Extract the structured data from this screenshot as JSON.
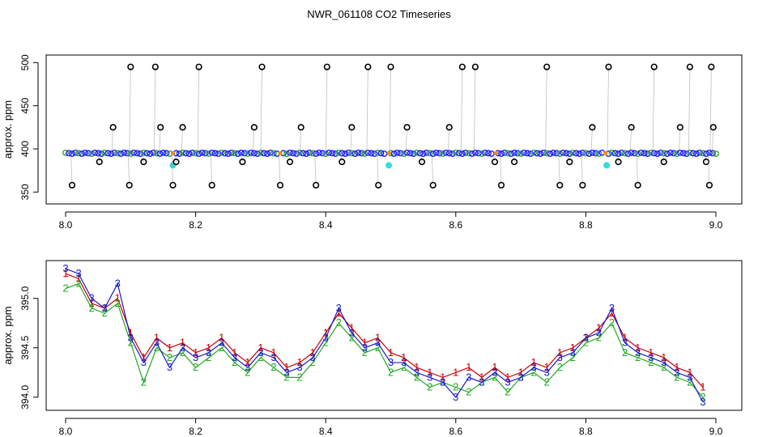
{
  "title": "NWR_061108  CO2 Timeseries",
  "chart_data": [
    {
      "type": "scatter",
      "ylabel": "approx. ppm",
      "xlim": [
        8.0,
        9.0
      ],
      "ylim": [
        340,
        505
      ],
      "x_ticks": [
        "8.0",
        "8.2",
        "8.4",
        "8.6",
        "8.8",
        "9.0"
      ],
      "y_ticks": [
        "350",
        "400",
        "450",
        "500"
      ],
      "colors": {
        "open_circle": "#000000",
        "baseline_blue": "#1a1aff",
        "baseline_green": "#22aa22",
        "cyan": "#33dddd",
        "stem": "#808080",
        "gap": "#ff8c00"
      },
      "baseline_ppm": 395,
      "gaps_x": [
        0.165,
        0.33,
        0.497,
        0.662,
        0.83
      ],
      "cyan_points": [
        {
          "x": 0.165,
          "y": 381
        },
        {
          "x": 0.497,
          "y": 381
        },
        {
          "x": 0.832,
          "y": 381
        }
      ],
      "series": [
        {
          "x": [
            0.01,
            0.052,
            0.073,
            0.098,
            0.1,
            0.12,
            0.138,
            0.146,
            0.165,
            0.17,
            0.18,
            0.205,
            0.225,
            0.272,
            0.29,
            0.302,
            0.33,
            0.345,
            0.362,
            0.385,
            0.402,
            0.425,
            0.44,
            0.465,
            0.481,
            0.5,
            0.525,
            0.548,
            0.565,
            0.59,
            0.61,
            0.63,
            0.66,
            0.67,
            0.69,
            0.74,
            0.76,
            0.775,
            0.795,
            0.81,
            0.835,
            0.85,
            0.87,
            0.88,
            0.905,
            0.92,
            0.945,
            0.96,
            0.985,
            0.99,
            0.993,
            0.996
          ],
          "y": [
            358,
            385,
            425,
            358,
            495,
            385,
            495,
            425,
            358,
            385,
            425,
            495,
            358,
            385,
            425,
            495,
            358,
            385,
            425,
            358,
            495,
            385,
            425,
            495,
            358,
            495,
            425,
            385,
            358,
            425,
            495,
            495,
            385,
            358,
            385,
            495,
            358,
            385,
            358,
            425,
            495,
            385,
            425,
            358,
            495,
            385,
            425,
            495,
            385,
            358,
            495,
            425
          ]
        }
      ]
    },
    {
      "type": "line",
      "ylabel": "approx. ppm",
      "xlim": [
        8.0,
        9.0
      ],
      "ylim": [
        393.9,
        395.35
      ],
      "x_ticks": [
        "8.0",
        "8.2",
        "8.4",
        "8.6",
        "8.8",
        "9.0"
      ],
      "y_ticks": [
        "394.0",
        "394.5",
        "395.0"
      ],
      "series": [
        {
          "name": "1",
          "color": "#cc0000",
          "x": [
            8.0,
            8.02,
            8.04,
            8.06,
            8.08,
            8.1,
            8.12,
            8.14,
            8.16,
            8.18,
            8.2,
            8.22,
            8.24,
            8.26,
            8.28,
            8.3,
            8.32,
            8.34,
            8.36,
            8.38,
            8.4,
            8.42,
            8.44,
            8.46,
            8.48,
            8.5,
            8.52,
            8.54,
            8.56,
            8.58,
            8.6,
            8.62,
            8.64,
            8.66,
            8.68,
            8.7,
            8.72,
            8.74,
            8.76,
            8.78,
            8.8,
            8.82,
            8.84,
            8.86,
            8.88,
            8.9,
            8.92,
            8.94,
            8.96,
            8.98
          ],
          "values": [
            395.25,
            395.2,
            394.95,
            394.9,
            395.0,
            394.65,
            394.4,
            394.6,
            394.5,
            394.55,
            394.45,
            394.5,
            394.6,
            394.45,
            394.35,
            394.5,
            394.45,
            394.3,
            394.35,
            394.45,
            394.65,
            394.85,
            394.7,
            394.55,
            394.6,
            394.45,
            394.4,
            394.3,
            394.25,
            394.2,
            394.25,
            394.3,
            394.2,
            394.3,
            394.2,
            394.25,
            394.35,
            394.3,
            394.45,
            394.5,
            394.6,
            394.7,
            394.85,
            394.6,
            394.5,
            394.45,
            394.4,
            394.3,
            394.25,
            394.1
          ]
        },
        {
          "name": "2",
          "color": "#22aa22",
          "x": [
            8.0,
            8.02,
            8.04,
            8.06,
            8.08,
            8.1,
            8.12,
            8.14,
            8.16,
            8.18,
            8.2,
            8.22,
            8.24,
            8.26,
            8.28,
            8.3,
            8.32,
            8.34,
            8.36,
            8.38,
            8.4,
            8.42,
            8.44,
            8.46,
            8.48,
            8.5,
            8.52,
            8.54,
            8.56,
            8.58,
            8.6,
            8.62,
            8.64,
            8.66,
            8.68,
            8.7,
            8.72,
            8.74,
            8.76,
            8.78,
            8.8,
            8.82,
            8.84,
            8.86,
            8.88,
            8.9,
            8.92,
            8.94,
            8.96,
            8.98
          ],
          "values": [
            395.1,
            395.15,
            394.9,
            394.85,
            394.95,
            394.55,
            394.15,
            394.5,
            394.4,
            394.45,
            394.3,
            394.4,
            394.5,
            394.35,
            394.25,
            394.4,
            394.3,
            394.2,
            394.2,
            394.35,
            394.55,
            394.75,
            394.6,
            394.45,
            394.5,
            394.25,
            394.3,
            394.2,
            394.1,
            394.15,
            394.1,
            394.05,
            394.15,
            394.2,
            394.05,
            394.2,
            394.25,
            394.15,
            394.3,
            394.4,
            394.55,
            394.6,
            394.75,
            394.45,
            394.4,
            394.35,
            394.3,
            394.2,
            394.15,
            394.0
          ]
        },
        {
          "name": "3",
          "color": "#1a1acc",
          "x": [
            8.0,
            8.02,
            8.04,
            8.06,
            8.08,
            8.1,
            8.12,
            8.14,
            8.16,
            8.18,
            8.2,
            8.22,
            8.24,
            8.26,
            8.28,
            8.3,
            8.32,
            8.34,
            8.36,
            8.38,
            8.4,
            8.42,
            8.44,
            8.46,
            8.48,
            8.5,
            8.52,
            8.54,
            8.56,
            8.58,
            8.6,
            8.62,
            8.64,
            8.66,
            8.68,
            8.7,
            8.72,
            8.74,
            8.76,
            8.78,
            8.8,
            8.82,
            8.84,
            8.86,
            8.88,
            8.9,
            8.92,
            8.94,
            8.96,
            8.98
          ],
          "values": [
            395.3,
            395.25,
            395.0,
            394.9,
            395.15,
            394.6,
            394.35,
            394.55,
            394.3,
            394.5,
            394.4,
            394.45,
            394.55,
            394.4,
            394.3,
            394.45,
            394.4,
            394.25,
            394.3,
            394.4,
            394.6,
            394.9,
            394.65,
            394.5,
            394.55,
            394.35,
            394.35,
            394.25,
            394.2,
            394.15,
            394.0,
            394.2,
            394.15,
            394.25,
            394.15,
            394.2,
            394.3,
            394.25,
            394.4,
            394.45,
            394.6,
            394.65,
            394.9,
            394.55,
            394.45,
            394.4,
            394.35,
            394.25,
            394.2,
            393.95
          ]
        }
      ]
    }
  ]
}
